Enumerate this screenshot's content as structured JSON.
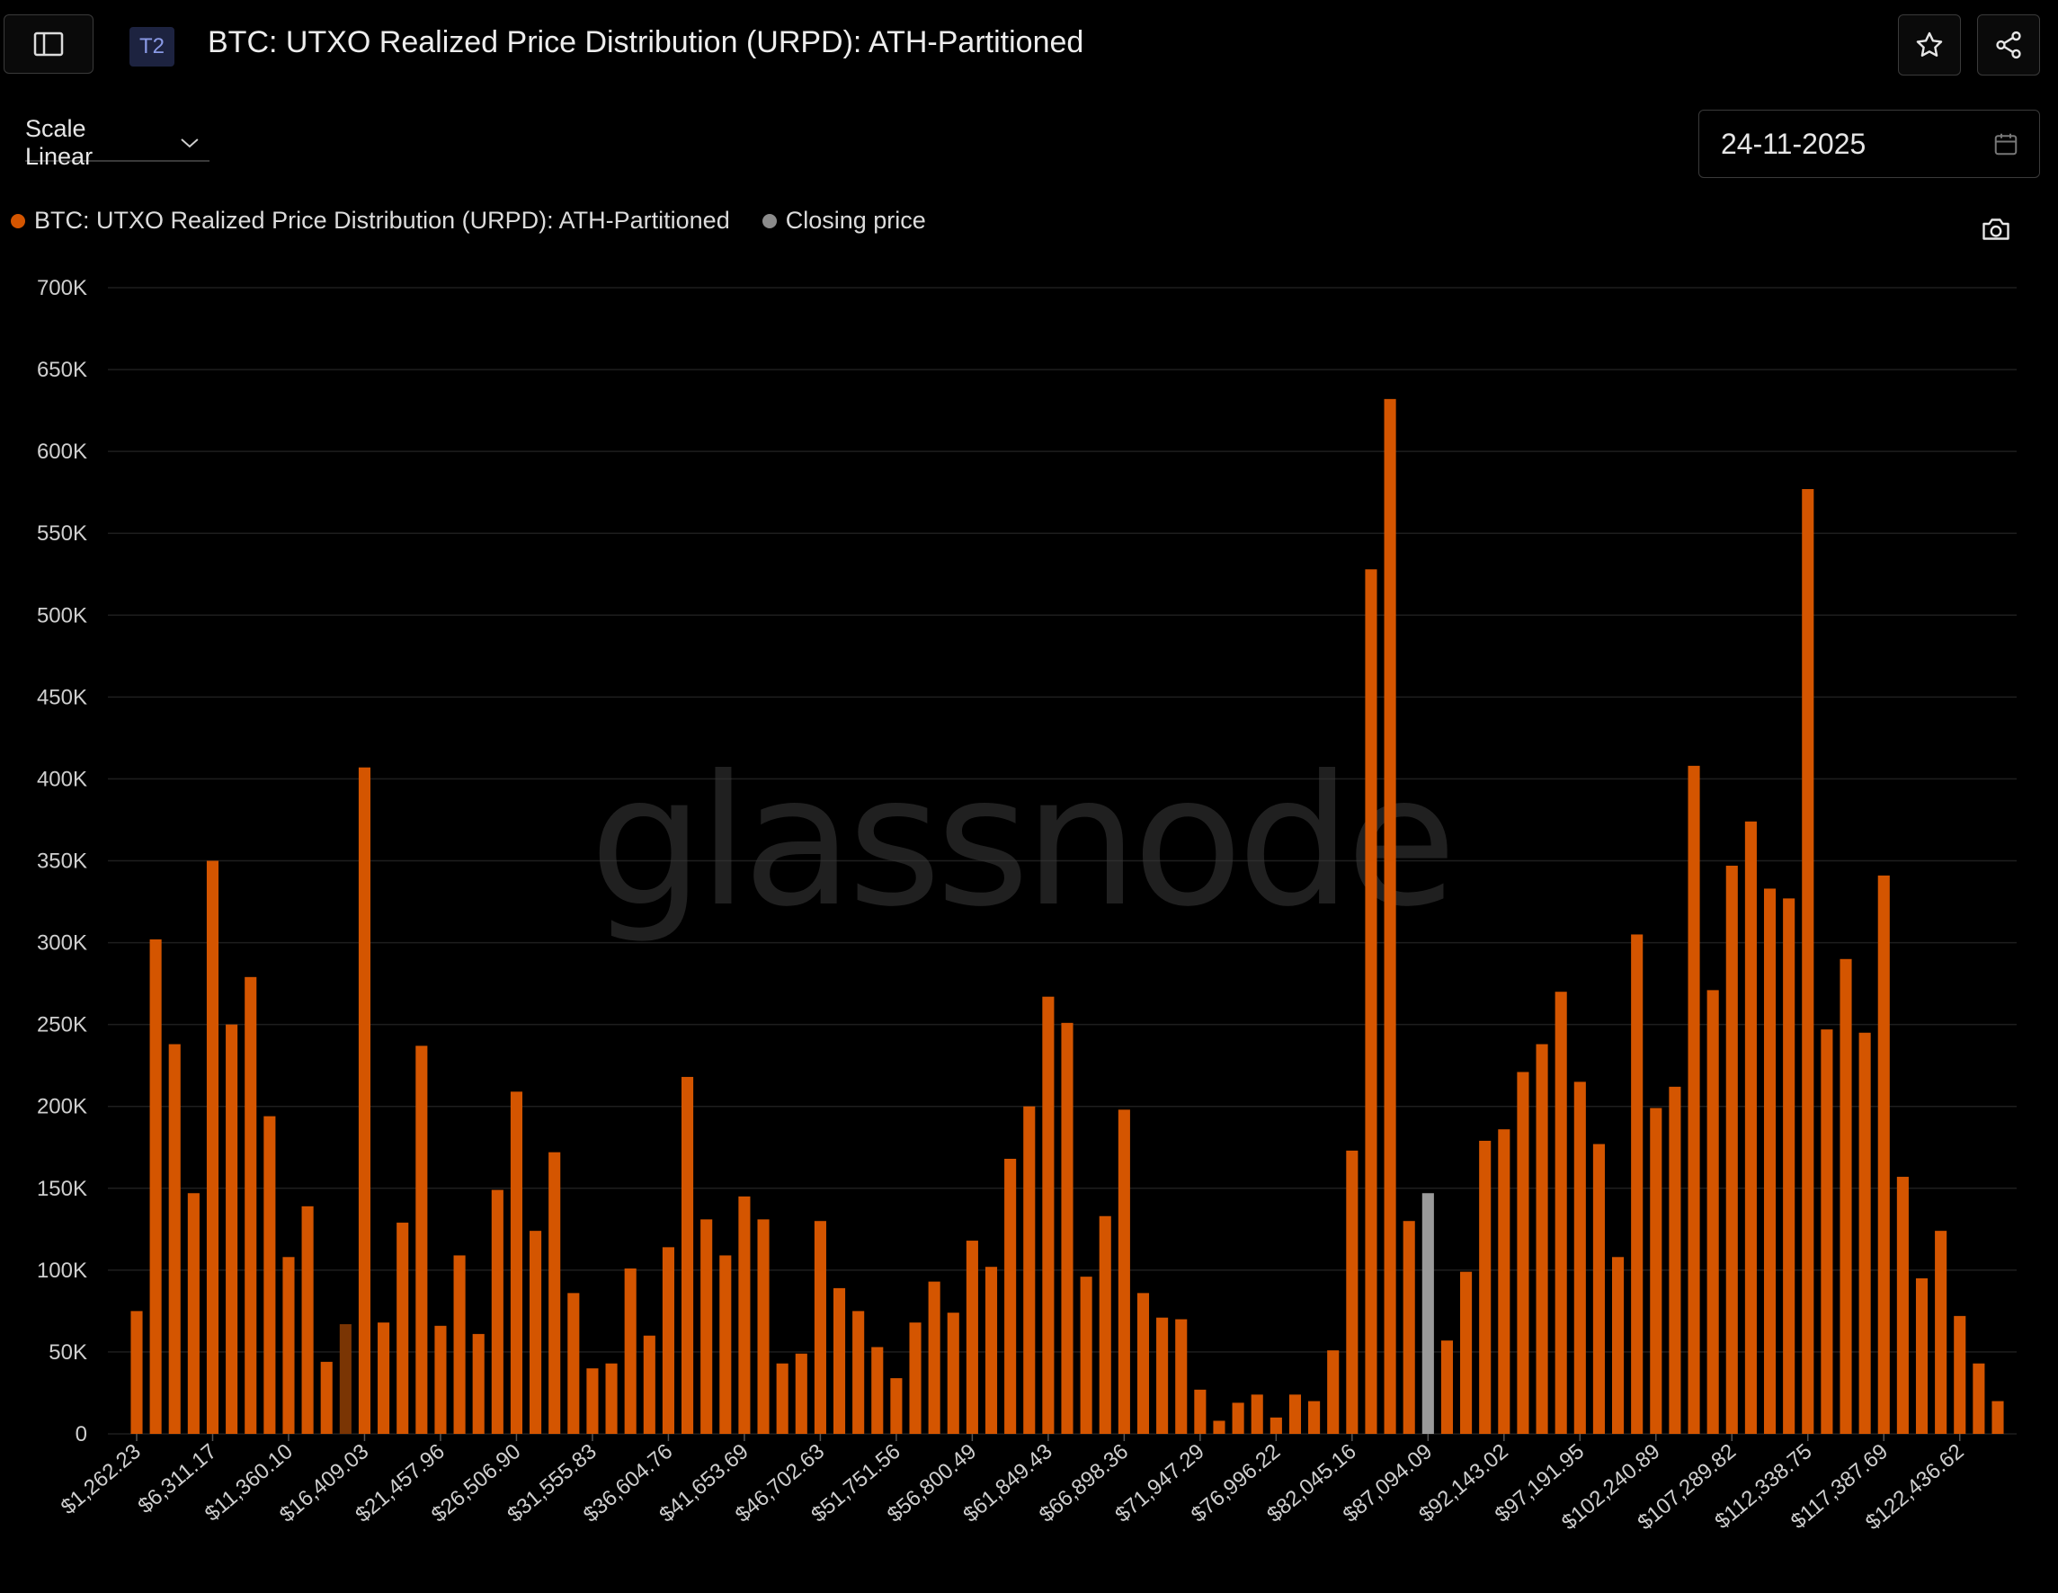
{
  "header": {
    "tier_badge": "T2",
    "title": "BTC: UTXO Realized Price Distribution (URPD): ATH-Partitioned"
  },
  "controls": {
    "scale_label": "Scale Linear",
    "date_value": "24-11-2025"
  },
  "legend": {
    "items": [
      {
        "label": "BTC: UTXO Realized Price Distribution (URPD): ATH-Partitioned",
        "color": "#d45500"
      },
      {
        "label": "Closing price",
        "color": "#8c8c8c"
      }
    ]
  },
  "watermark": "glassnode",
  "colors": {
    "bar": "#d45500",
    "bar_dim": "#7a3504",
    "closing": "#9a9a9a",
    "grid": "#1e1e1e"
  },
  "chart_data": {
    "type": "bar",
    "title": "BTC: UTXO Realized Price Distribution (URPD): ATH-Partitioned",
    "ylim": [
      0,
      700000
    ],
    "y_ticks": [
      0,
      50000,
      100000,
      150000,
      200000,
      250000,
      300000,
      350000,
      400000,
      450000,
      500000,
      550000,
      600000,
      650000,
      700000
    ],
    "y_tick_labels": [
      "0",
      "50K",
      "100K",
      "150K",
      "200K",
      "250K",
      "300K",
      "350K",
      "400K",
      "450K",
      "500K",
      "550K",
      "600K",
      "650K",
      "700K"
    ],
    "x_tick_labels": [
      "$1,262.23",
      "$6,311.17",
      "$11,360.10",
      "$16,409.03",
      "$21,457.96",
      "$26,506.90",
      "$31,555.83",
      "$36,604.76",
      "$41,653.69",
      "$46,702.63",
      "$51,751.56",
      "$56,800.49",
      "$61,849.43",
      "$66,898.36",
      "$71,947.29",
      "$76,996.22",
      "$82,045.16",
      "$87,094.09",
      "$92,143.02",
      "$97,191.95",
      "$102,240.89",
      "$107,289.82",
      "$112,338.75",
      "$117,387.69",
      "$122,436.62"
    ],
    "x_tick_every": 4,
    "grid": true,
    "legend_position": "top-left",
    "highlight": {
      "closing_index": 68,
      "dim_index": 11
    },
    "values": [
      75000,
      302000,
      238000,
      147000,
      350000,
      250000,
      279000,
      194000,
      108000,
      139000,
      44000,
      67000,
      407000,
      68000,
      129000,
      237000,
      66000,
      109000,
      61000,
      149000,
      209000,
      124000,
      172000,
      86000,
      40000,
      43000,
      101000,
      60000,
      114000,
      218000,
      131000,
      109000,
      145000,
      131000,
      43000,
      49000,
      130000,
      89000,
      75000,
      53000,
      34000,
      68000,
      93000,
      74000,
      118000,
      102000,
      168000,
      200000,
      267000,
      251000,
      96000,
      133000,
      198000,
      86000,
      71000,
      70000,
      27000,
      8000,
      19000,
      24000,
      10000,
      24000,
      20000,
      51000,
      173000,
      528000,
      632000,
      130000,
      147000,
      57000,
      99000,
      179000,
      186000,
      221000,
      238000,
      270000,
      215000,
      177000,
      108000,
      305000,
      199000,
      212000,
      408000,
      271000,
      347000,
      374000,
      333000,
      327000,
      577000,
      247000,
      290000,
      245000,
      341000,
      157000,
      95000,
      124000,
      72000,
      43000,
      20000
    ]
  }
}
